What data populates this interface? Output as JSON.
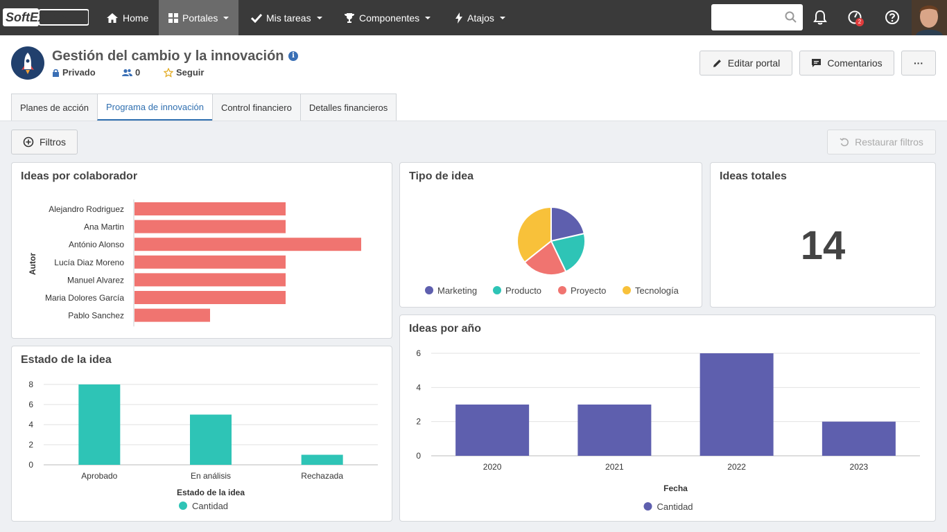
{
  "topbar": {
    "logo": "SoftExpert",
    "nav": [
      {
        "label": "Home",
        "icon": "home-icon"
      },
      {
        "label": "Portales",
        "icon": "grid-icon",
        "active": true
      },
      {
        "label": "Mis tareas",
        "icon": "check-icon"
      },
      {
        "label": "Componentes",
        "icon": "trophy-icon"
      },
      {
        "label": "Atajos",
        "icon": "bolt-icon"
      }
    ],
    "notifications_badge": "2"
  },
  "header": {
    "title": "Gestión del cambio y la innovación",
    "privacy": "Privado",
    "members": "0",
    "follow": "Seguir",
    "edit_button": "Editar portal",
    "comments_button": "Comentarios",
    "more_button": "···"
  },
  "tabs": [
    "Planes de acción",
    "Programa de innovación",
    "Control financiero",
    "Detalles financieros"
  ],
  "toolbar": {
    "filters": "Filtros",
    "reset_filters": "Restaurar filtros"
  },
  "colors": {
    "accent": "#2f6fb0",
    "bar_red": "#f07470",
    "teal": "#2ec4b6",
    "purple": "#5e5fae",
    "yellow": "#f8c13a",
    "topbar": "#3a3a3a"
  },
  "panels": {
    "colaborador": {
      "title": "Ideas por colaborador"
    },
    "tipo": {
      "title": "Tipo de idea"
    },
    "totales": {
      "title": "Ideas totales",
      "value": "14"
    },
    "estado": {
      "title": "Estado de la idea"
    },
    "anio": {
      "title": "Ideas por año"
    }
  },
  "chart_data": [
    {
      "type": "bar",
      "orientation": "horizontal",
      "title": "Ideas por colaborador",
      "ylabel": "Autor",
      "categories": [
        "Alejandro Rodriguez",
        "Ana Martin",
        "António Alonso",
        "Lucía Diaz Moreno",
        "Manuel Alvarez",
        "Maria Dolores García",
        "Pablo Sanchez"
      ],
      "values": [
        2,
        2,
        3,
        2,
        2,
        2,
        1
      ],
      "color": "#f07470"
    },
    {
      "type": "pie",
      "title": "Tipo de idea",
      "categories": [
        "Marketing",
        "Producto",
        "Proyecto",
        "Tecnología"
      ],
      "values": [
        3,
        3,
        3,
        5
      ],
      "colors": [
        "#5e5fae",
        "#2ec4b6",
        "#f07470",
        "#f8c13a"
      ],
      "legend": "bottom"
    },
    {
      "type": "bar",
      "title": "Estado de la idea",
      "xlabel": "Estado de la idea",
      "categories": [
        "Aprobado",
        "En análisis",
        "Rechazada"
      ],
      "series": [
        {
          "name": "Cantidad",
          "values": [
            8,
            5,
            1
          ]
        }
      ],
      "ylim": [
        0,
        8
      ],
      "yticks": [
        0,
        2,
        4,
        6,
        8
      ],
      "color": "#2ec4b6",
      "grid": true,
      "legend": "bottom"
    },
    {
      "type": "bar",
      "title": "Ideas por año",
      "xlabel": "Fecha",
      "categories": [
        "2020",
        "2021",
        "2022",
        "2023"
      ],
      "series": [
        {
          "name": "Cantidad",
          "values": [
            3,
            3,
            6,
            2
          ]
        }
      ],
      "ylim": [
        0,
        6
      ],
      "yticks": [
        0,
        2,
        4,
        6
      ],
      "color": "#5e5fae",
      "grid": true,
      "legend": "bottom"
    }
  ]
}
